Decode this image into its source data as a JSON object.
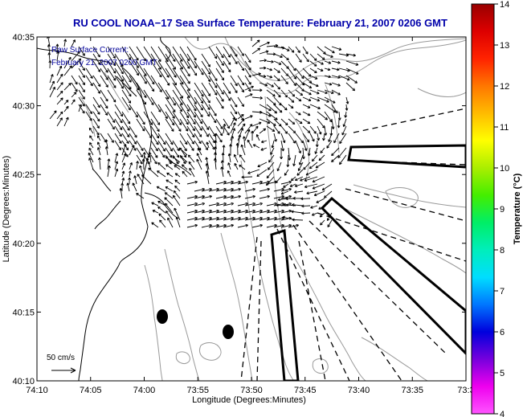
{
  "title": "RU COOL  NOAA−17  Sea Surface Temperature:  February 21, 2007 0206 GMT",
  "legend": {
    "line1": "Raw Surface Current:",
    "line2": "February 21, 2007 0200 GMT"
  },
  "scale_label": "50 cm/s",
  "x_axis": {
    "label": "Longitude (Degrees:Minutes)",
    "ticks": [
      "74:10",
      "74:05",
      "74:00",
      "73:55",
      "73:50",
      "73:45",
      "73:40",
      "73:35",
      "73:3"
    ]
  },
  "y_axis": {
    "label": "Latitude (Degrees:Minutes)",
    "ticks": [
      "40:35",
      "40:30",
      "40:25",
      "40:20",
      "40:15",
      "40:10"
    ]
  },
  "colorbar": {
    "label": "Temperature (°C)",
    "ticks": [
      "14",
      "13",
      "12",
      "11",
      "10",
      "9",
      "8",
      "7",
      "6",
      "5",
      "4"
    ],
    "range": [
      4,
      14
    ],
    "colors": [
      "#ff55ff",
      "#ee00ee",
      "#7700dd",
      "#0000dd",
      "#0077ff",
      "#00ddff",
      "#00eebb",
      "#00ee66",
      "#44ee00",
      "#aaee00",
      "#ffff00",
      "#ffbb00",
      "#ff7700",
      "#ff2200",
      "#dd0000",
      "#990000"
    ]
  },
  "map_features": {
    "markers": [
      "buoy-marker",
      "buoy-marker"
    ],
    "arrow_color": "#000000",
    "coastline_color": "#000000",
    "contour_color": "#999999"
  }
}
